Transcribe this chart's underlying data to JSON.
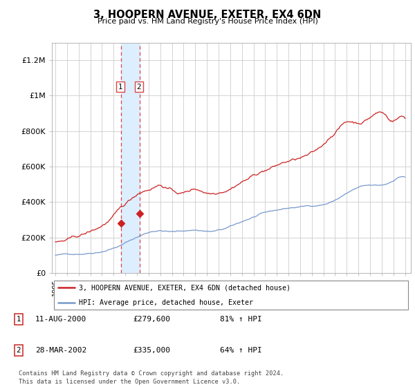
{
  "title": "3, HOOPERN AVENUE, EXETER, EX4 6DN",
  "subtitle": "Price paid vs. HM Land Registry's House Price Index (HPI)",
  "ylim": [
    0,
    1300000
  ],
  "yticks": [
    0,
    200000,
    400000,
    600000,
    800000,
    1000000,
    1200000
  ],
  "ytick_labels": [
    "£0",
    "£200K",
    "£400K",
    "£600K",
    "£800K",
    "£1M",
    "£1.2M"
  ],
  "transaction1": {
    "date": "11-AUG-2000",
    "price": 279600,
    "label": "1",
    "pct": "81% ↑ HPI",
    "x": 2000.61
  },
  "transaction2": {
    "date": "28-MAR-2002",
    "price": 335000,
    "label": "2",
    "pct": "64% ↑ HPI",
    "x": 2002.23
  },
  "legend_entry1": "3, HOOPERN AVENUE, EXETER, EX4 6DN (detached house)",
  "legend_entry2": "HPI: Average price, detached house, Exeter",
  "footer1": "Contains HM Land Registry data © Crown copyright and database right 2024.",
  "footer2": "This data is licensed under the Open Government Licence v3.0.",
  "line_color_red": "#cc2222",
  "line_color_blue": "#7799cc",
  "shading_color": "#ddeeff",
  "vline_color": "#dd4444",
  "background_color": "#ffffff",
  "grid_color": "#cccccc"
}
